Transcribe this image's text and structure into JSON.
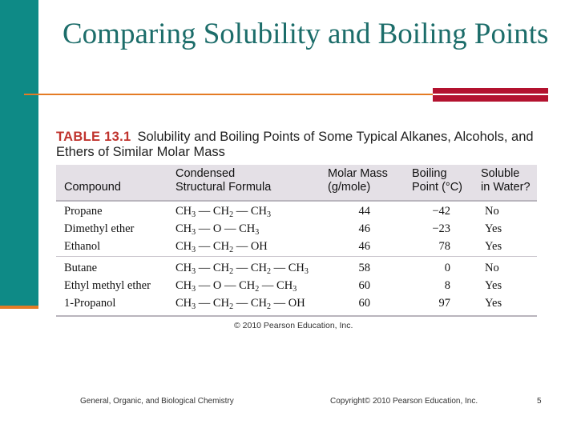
{
  "slide": {
    "title": "Comparing Solubility and Boiling Points",
    "footer_left": "General, Organic, and Biological Chemistry",
    "footer_center": "Copyright© 2010 Pearson Education, Inc.",
    "page_number": "5",
    "colors": {
      "teal": "#0e8a86",
      "title": "#1c6d6a",
      "orange": "#e47b25",
      "red": "#b3122f"
    }
  },
  "table": {
    "label": "TABLE 13.1",
    "caption": "Solubility and Boiling Points of Some Typical Alkanes, Alcohols, and Ethers of Similar Molar Mass",
    "headers": {
      "compound": "Compound",
      "formula": "Condensed\nStructural Formula",
      "molar_mass": "Molar Mass\n(g/mole)",
      "boiling": "Boiling\nPoint (°C)",
      "soluble": "Soluble\nin Water?"
    },
    "rows": [
      {
        "compound": "Propane",
        "formula": [
          "CH3",
          "CH2",
          "CH3"
        ],
        "molar_mass": "44",
        "boiling": "−42",
        "soluble": "No"
      },
      {
        "compound": "Dimethyl ether",
        "formula": [
          "CH3",
          "O",
          "CH3"
        ],
        "molar_mass": "46",
        "boiling": "−23",
        "soluble": "Yes"
      },
      {
        "compound": "Ethanol",
        "formula": [
          "CH3",
          "CH2",
          "OH"
        ],
        "molar_mass": "46",
        "boiling": "78",
        "soluble": "Yes"
      },
      {
        "compound": "Butane",
        "formula": [
          "CH3",
          "CH2",
          "CH2",
          "CH3"
        ],
        "molar_mass": "58",
        "boiling": "0",
        "soluble": "No"
      },
      {
        "compound": "Ethyl methyl ether",
        "formula": [
          "CH3",
          "O",
          "CH2",
          "CH3"
        ],
        "molar_mass": "60",
        "boiling": "8",
        "soluble": "Yes"
      },
      {
        "compound": "1-Propanol",
        "formula": [
          "CH3",
          "CH2",
          "CH2",
          "OH"
        ],
        "molar_mass": "60",
        "boiling": "97",
        "soluble": "Yes"
      }
    ],
    "credit": "© 2010 Pearson Education, Inc."
  }
}
